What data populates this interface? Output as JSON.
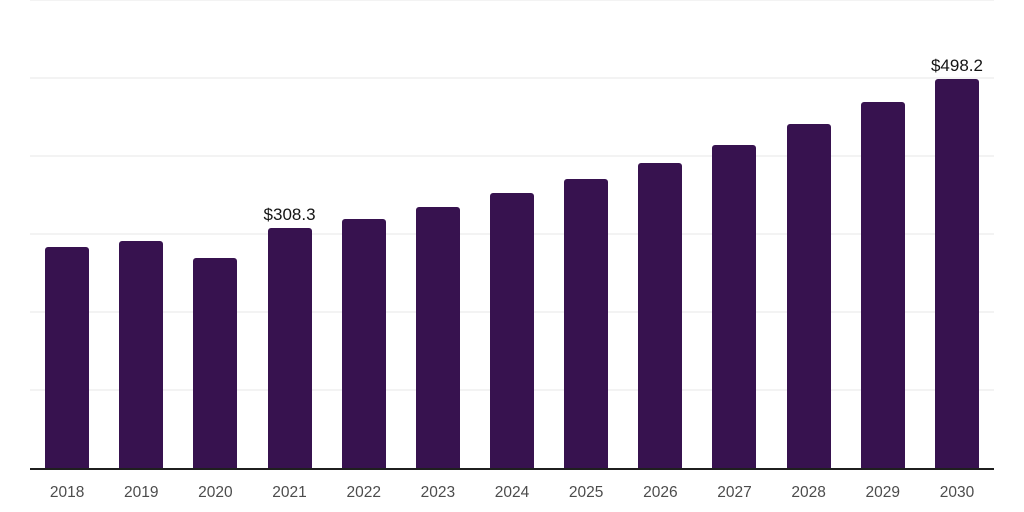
{
  "chart_data": {
    "type": "bar",
    "title": "",
    "xlabel": "",
    "ylabel": "",
    "categories": [
      "2018",
      "2019",
      "2020",
      "2021",
      "2022",
      "2023",
      "2024",
      "2025",
      "2026",
      "2027",
      "2028",
      "2029",
      "2030"
    ],
    "values": [
      283.7,
      291.4,
      269.7,
      308.3,
      319.5,
      334.8,
      352.7,
      370.6,
      391.1,
      414.1,
      440.9,
      469.0,
      498.2
    ],
    "data_labels": [
      "",
      "",
      "",
      "$308.3",
      "",
      "",
      "",
      "",
      "",
      "",
      "",
      "",
      "$498.2"
    ],
    "ylim": [
      0,
      600
    ],
    "gridline_values": [
      100,
      200,
      300,
      400,
      500,
      600
    ],
    "grid_on": true,
    "legend": "none",
    "colors": {
      "bar": "#37124F",
      "grid": "#f3f3f3",
      "axis": "#1f1f1f",
      "tick_label": "#4c4c4c",
      "data_label": "#141414",
      "background": "#ffffff"
    }
  }
}
